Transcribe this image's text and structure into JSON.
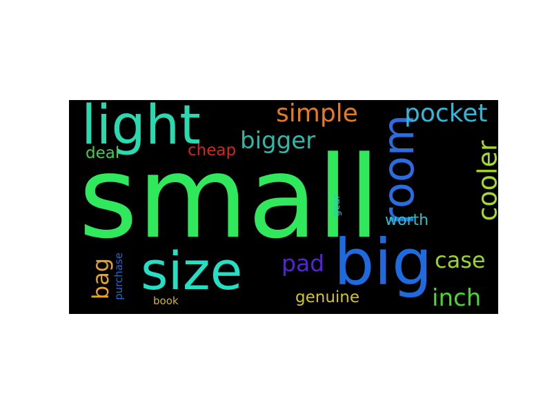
{
  "words": [
    {
      "text": "small",
      "color": "#2fe85c",
      "vertical": false
    },
    {
      "text": "light",
      "color": "#29d9b0",
      "vertical": false
    },
    {
      "text": "size",
      "color": "#25dfc4",
      "vertical": false
    },
    {
      "text": "big",
      "color": "#1e6be0",
      "vertical": false
    },
    {
      "text": "room",
      "color": "#2a6de0",
      "vertical": true
    },
    {
      "text": "simple",
      "color": "#e87a1e",
      "vertical": false
    },
    {
      "text": "pocket",
      "color": "#2fb8d9",
      "vertical": false
    },
    {
      "text": "bigger",
      "color": "#2fb8a8",
      "vertical": false
    },
    {
      "text": "cooler",
      "color": "#a7d82a",
      "vertical": true
    },
    {
      "text": "cheap",
      "color": "#d6261e",
      "vertical": false
    },
    {
      "text": "deal",
      "color": "#3fd04a",
      "vertical": false
    },
    {
      "text": "worth",
      "color": "#25c4c4",
      "vertical": false
    },
    {
      "text": "gear",
      "color": "#2cc4d6",
      "vertical": true
    },
    {
      "text": "pad",
      "color": "#5224d6",
      "vertical": false
    },
    {
      "text": "case",
      "color": "#9ad62a",
      "vertical": false
    },
    {
      "text": "bag",
      "color": "#e8a41e",
      "vertical": true
    },
    {
      "text": "purchase",
      "color": "#1e6bd6",
      "vertical": true
    },
    {
      "text": "genuine",
      "color": "#d4c41e",
      "vertical": false
    },
    {
      "text": "inch",
      "color": "#4ad82a",
      "vertical": false
    },
    {
      "text": "book",
      "color": "#d6b41e",
      "vertical": false
    }
  ]
}
